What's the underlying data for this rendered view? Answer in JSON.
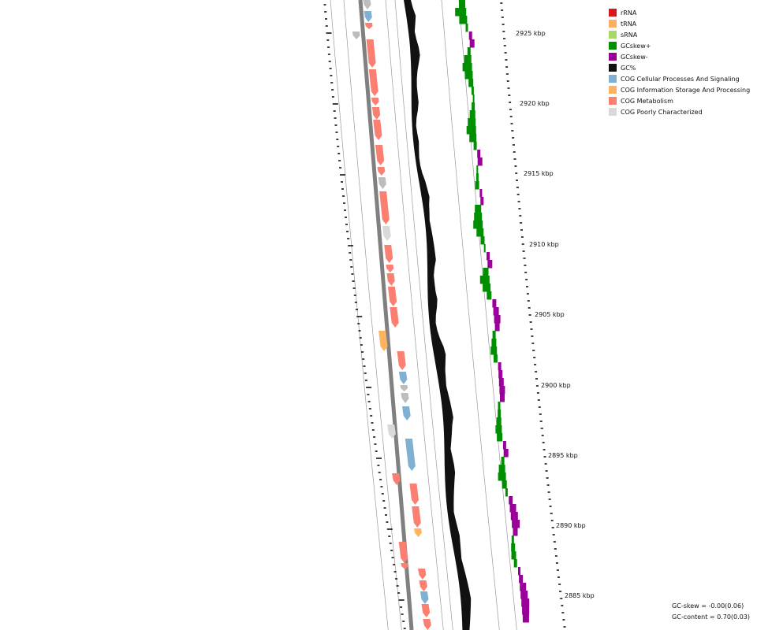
{
  "legend": [
    {
      "label": "rRNA",
      "color": "#d7191c"
    },
    {
      "label": "tRNA",
      "color": "#fdae61"
    },
    {
      "label": "sRNA",
      "color": "#a6d96a"
    },
    {
      "label": "GCskew+",
      "color": "#008f00"
    },
    {
      "label": "GCskew-",
      "color": "#990099"
    },
    {
      "label": "GC%",
      "color": "#111111"
    },
    {
      "label": "COG Cellular Processes And Signaling",
      "color": "#80b1d3"
    },
    {
      "label": "COG Information Storage And Processing",
      "color": "#fdb462"
    },
    {
      "label": "COG Metabolism",
      "color": "#fb8072"
    },
    {
      "label": "COG Poorly Characterized",
      "color": "#d9d9d9"
    }
  ],
  "axis_labels": [
    "2925 kbp",
    "2920 kbp",
    "2915 kbp",
    "2910 kbp",
    "2905 kbp",
    "2900 kbp",
    "2895 kbp",
    "2890 kbp",
    "2885 kbp"
  ],
  "stats": {
    "gc_skew": "GC-skew = -0.00(0.06)",
    "gc_content": "GC-content = 0.70(0.03)"
  },
  "colors": {
    "metabolism": "#fb8072",
    "cellular": "#80b1d3",
    "info": "#fdb462",
    "poor": "#d9d9d9",
    "uncharacterized": "#bdbdbd",
    "backbone": "#808080",
    "gc": "#111111",
    "skew_pos": "#008f00",
    "skew_neg": "#990099"
  }
}
